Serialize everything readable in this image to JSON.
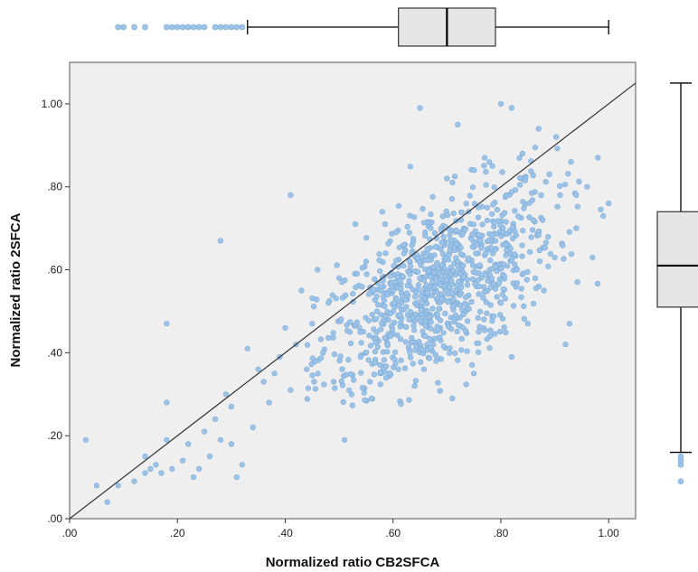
{
  "chart_data": {
    "type": "scatter",
    "xlabel": "Normalized ratio CB2SFCA",
    "ylabel": "Normalized ratio 2SFCA",
    "xlim": [
      0,
      1.05
    ],
    "ylim": [
      0,
      1.1
    ],
    "x_ticks": [
      0,
      0.2,
      0.4,
      0.6,
      0.8,
      1.0
    ],
    "x_tick_labels": [
      ".00",
      ".20",
      ".40",
      ".60",
      ".80",
      "1.00"
    ],
    "y_ticks": [
      0,
      0.2,
      0.4,
      0.6,
      0.8,
      1.0
    ],
    "y_tick_labels": [
      ".00",
      ".20",
      ".40",
      ".60",
      ".80",
      "1.00"
    ],
    "grid": false,
    "legend": "none",
    "reference_line": {
      "from": [
        0,
        0
      ],
      "to": [
        1.05,
        1.05
      ]
    },
    "point_color": "#9cc3e8",
    "plot_background": "#efefef",
    "marginal_box_x": {
      "min": 0.33,
      "q1": 0.61,
      "median": 0.7,
      "q3": 0.79,
      "max": 1.0,
      "outliers": [
        0.09,
        0.1,
        0.12,
        0.14,
        0.18,
        0.19,
        0.2,
        0.21,
        0.22,
        0.23,
        0.24,
        0.25,
        0.27,
        0.28,
        0.29,
        0.3,
        0.31,
        0.32
      ]
    },
    "marginal_box_y": {
      "min": 0.16,
      "q1": 0.51,
      "median": 0.61,
      "q3": 0.74,
      "max": 1.05,
      "outliers": [
        0.09,
        0.13,
        0.14,
        0.15
      ]
    },
    "points": [
      [
        0.03,
        0.19
      ],
      [
        0.05,
        0.08
      ],
      [
        0.07,
        0.04
      ],
      [
        0.09,
        0.08
      ],
      [
        0.12,
        0.09
      ],
      [
        0.14,
        0.11
      ],
      [
        0.14,
        0.15
      ],
      [
        0.15,
        0.12
      ],
      [
        0.16,
        0.13
      ],
      [
        0.17,
        0.11
      ],
      [
        0.18,
        0.47
      ],
      [
        0.18,
        0.28
      ],
      [
        0.18,
        0.19
      ],
      [
        0.19,
        0.12
      ],
      [
        0.21,
        0.14
      ],
      [
        0.22,
        0.18
      ],
      [
        0.23,
        0.1
      ],
      [
        0.24,
        0.12
      ],
      [
        0.25,
        0.21
      ],
      [
        0.26,
        0.15
      ],
      [
        0.27,
        0.24
      ],
      [
        0.28,
        0.67
      ],
      [
        0.28,
        0.19
      ],
      [
        0.29,
        0.3
      ],
      [
        0.3,
        0.27
      ],
      [
        0.3,
        0.18
      ],
      [
        0.31,
        0.1
      ],
      [
        0.32,
        0.13
      ],
      [
        0.33,
        0.41
      ],
      [
        0.34,
        0.22
      ],
      [
        0.35,
        0.36
      ],
      [
        0.36,
        0.33
      ],
      [
        0.37,
        0.28
      ],
      [
        0.38,
        0.35
      ],
      [
        0.39,
        0.39
      ],
      [
        0.4,
        0.46
      ],
      [
        0.41,
        0.78
      ],
      [
        0.41,
        0.31
      ],
      [
        0.42,
        0.42
      ],
      [
        0.43,
        0.55
      ],
      [
        0.44,
        0.36
      ],
      [
        0.45,
        0.47
      ],
      [
        0.46,
        0.6
      ],
      [
        0.47,
        0.4
      ],
      [
        0.48,
        0.52
      ],
      [
        0.49,
        0.33
      ],
      [
        0.5,
        0.58
      ],
      [
        0.51,
        0.19
      ],
      [
        0.52,
        0.45
      ],
      [
        0.53,
        0.71
      ],
      [
        0.54,
        0.39
      ],
      [
        0.55,
        0.62
      ],
      [
        0.56,
        0.29
      ],
      [
        0.57,
        0.5
      ],
      [
        0.58,
        0.74
      ],
      [
        0.59,
        0.42
      ],
      [
        0.6,
        0.55
      ],
      [
        0.61,
        0.36
      ],
      [
        0.62,
        0.66
      ],
      [
        0.63,
        0.48
      ],
      [
        0.64,
        0.32
      ],
      [
        0.65,
        0.99
      ],
      [
        0.65,
        0.58
      ],
      [
        0.66,
        0.44
      ],
      [
        0.67,
        0.7
      ],
      [
        0.68,
        0.38
      ],
      [
        0.69,
        0.53
      ],
      [
        0.7,
        0.82
      ],
      [
        0.71,
        0.29
      ],
      [
        0.72,
        0.95
      ],
      [
        0.72,
        0.61
      ],
      [
        0.73,
        0.46
      ],
      [
        0.74,
        0.74
      ],
      [
        0.75,
        0.35
      ],
      [
        0.76,
        0.56
      ],
      [
        0.77,
        0.87
      ],
      [
        0.78,
        0.44
      ],
      [
        0.79,
        0.67
      ],
      [
        0.8,
        1.0
      ],
      [
        0.8,
        0.52
      ],
      [
        0.81,
        0.78
      ],
      [
        0.82,
        0.99
      ],
      [
        0.82,
        0.39
      ],
      [
        0.83,
        0.6
      ],
      [
        0.84,
        0.88
      ],
      [
        0.85,
        0.47
      ],
      [
        0.86,
        0.72
      ],
      [
        0.87,
        0.94
      ],
      [
        0.88,
        0.55
      ],
      [
        0.89,
        0.83
      ],
      [
        0.9,
        0.63
      ],
      [
        0.91,
        0.78
      ],
      [
        0.92,
        0.42
      ],
      [
        0.93,
        0.86
      ],
      [
        0.94,
        0.7
      ],
      [
        0.96,
        0.8
      ],
      [
        0.97,
        0.63
      ],
      [
        0.98,
        0.87
      ],
      [
        0.99,
        0.73
      ],
      [
        1.0,
        0.76
      ]
    ],
    "cloud_description_only_shape": {
      "center": [
        0.68,
        0.55
      ],
      "sx": 0.11,
      "sy": 0.13,
      "rho": 0.62,
      "n": 900,
      "xmin": 0.44,
      "xmax": 0.99,
      "ymin": 0.27,
      "ymax": 0.97
    }
  }
}
